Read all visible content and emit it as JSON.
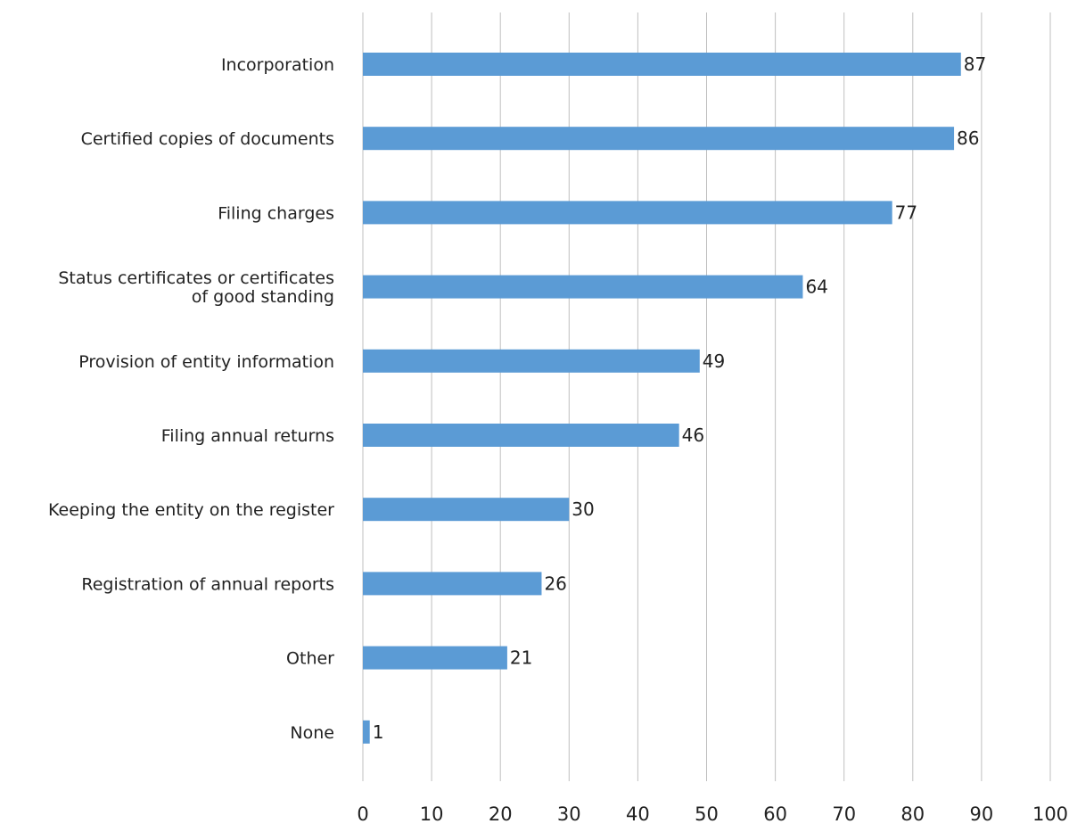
{
  "chart_data": {
    "type": "bar",
    "orientation": "horizontal",
    "categories": [
      "Incorporation",
      "Certified copies of documents",
      "Filing charges",
      "Status certificates or certificates of good standing",
      "Provision of entity information",
      "Filing annual returns",
      "Keeping the entity on the register",
      "Registration of annual reports",
      "Other",
      "None"
    ],
    "category_lines": [
      [
        "Incorporation"
      ],
      [
        "Certified copies of documents"
      ],
      [
        "Filing charges"
      ],
      [
        "Status certificates or certificates",
        "of good standing"
      ],
      [
        "Provision of entity information"
      ],
      [
        "Filing annual returns"
      ],
      [
        "Keeping the entity on the register"
      ],
      [
        "Registration of annual reports"
      ],
      [
        "Other"
      ],
      [
        "None"
      ]
    ],
    "values": [
      87,
      86,
      77,
      64,
      49,
      46,
      30,
      26,
      21,
      1
    ],
    "xlim": [
      0,
      100
    ],
    "xticks": [
      0,
      10,
      20,
      30,
      40,
      50,
      60,
      70,
      80,
      90,
      100
    ],
    "data_labels": true,
    "grid": "vertical",
    "legend": "none",
    "title": "",
    "xlabel": "",
    "ylabel": "",
    "colors": {
      "bar": "#5b9bd5",
      "grid": "#bfbfbf",
      "text": "#222222"
    }
  }
}
